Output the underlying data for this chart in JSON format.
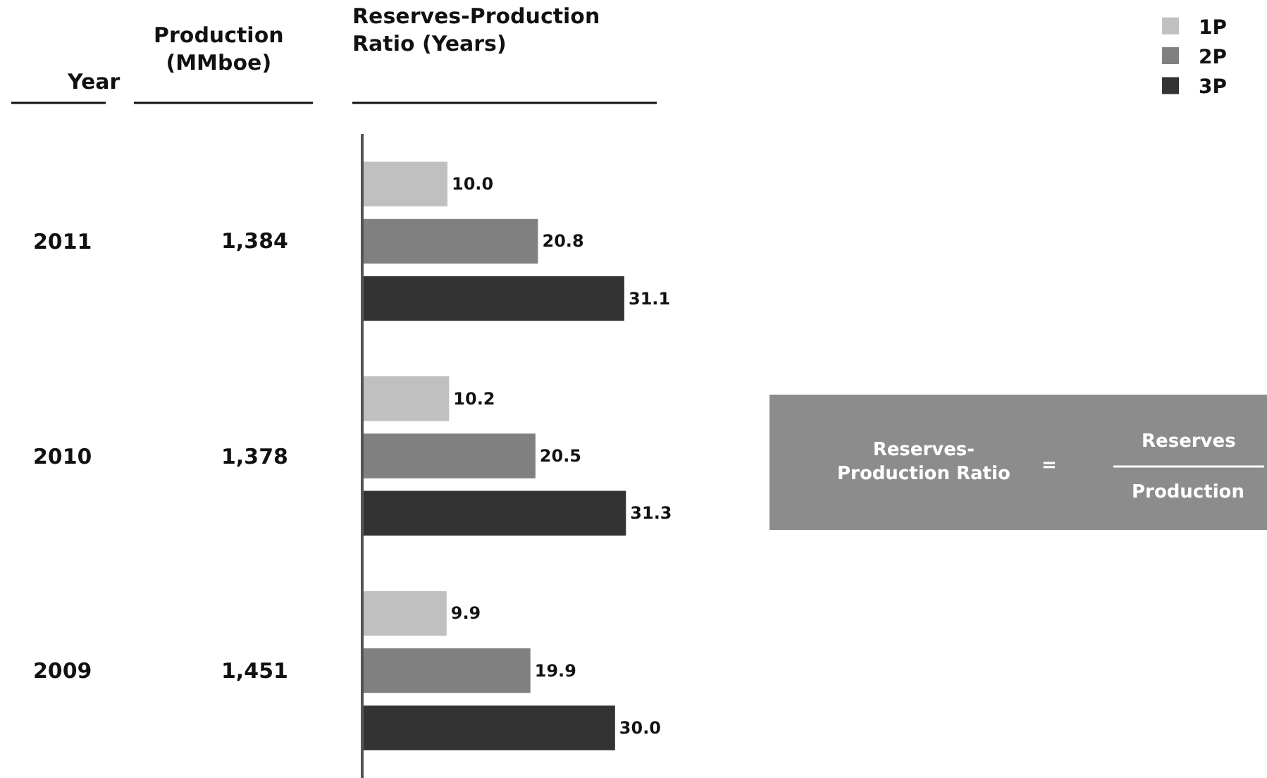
{
  "chart_data": {
    "type": "bar",
    "orientation": "horizontal",
    "title": "Reserves-Production\nRatio (Years)",
    "ylabel": "Year",
    "categories": [
      "2011",
      "2010",
      "2009"
    ],
    "series": [
      {
        "name": "1P",
        "color": "#c0c0c0",
        "values": [
          10.0,
          10.2,
          9.9
        ],
        "value_labels": [
          "10.0",
          "10.2",
          "9.9"
        ]
      },
      {
        "name": "2P",
        "color": "#808080",
        "values": [
          20.8,
          20.5,
          19.9
        ],
        "value_labels": [
          "20.8",
          "20.5",
          "19.9"
        ]
      },
      {
        "name": "3P",
        "color": "#333333",
        "values": [
          31.1,
          31.3,
          30.0
        ],
        "value_labels": [
          "31.1",
          "31.3",
          "30.0"
        ]
      }
    ],
    "legend": "top right",
    "annotations": [
      "Production\n(MMboe)",
      "1,384",
      "1,378",
      "1,451",
      "Reserves-\nProduction Ratio",
      "=",
      "Reserves",
      "Production"
    ]
  }
}
